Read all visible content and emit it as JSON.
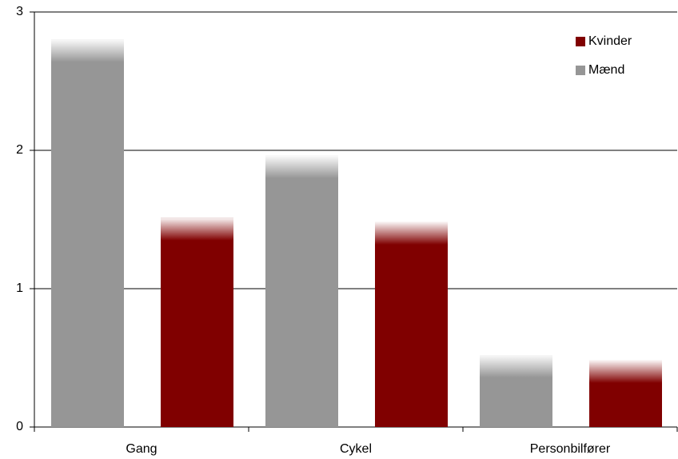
{
  "chart_data": {
    "type": "bar",
    "categories": [
      "Gang",
      "Cykel",
      "Personbilfører"
    ],
    "series": [
      {
        "name": "Mænd",
        "color": "#969696",
        "values": [
          2.8,
          1.96,
          0.52
        ]
      },
      {
        "name": "Kvinder",
        "color": "#800000",
        "values": [
          1.51,
          1.48,
          0.48
        ]
      }
    ],
    "ylim": [
      0,
      3
    ],
    "yticks": [
      0,
      1,
      2,
      3
    ],
    "grid": true,
    "legend": "upper right"
  }
}
